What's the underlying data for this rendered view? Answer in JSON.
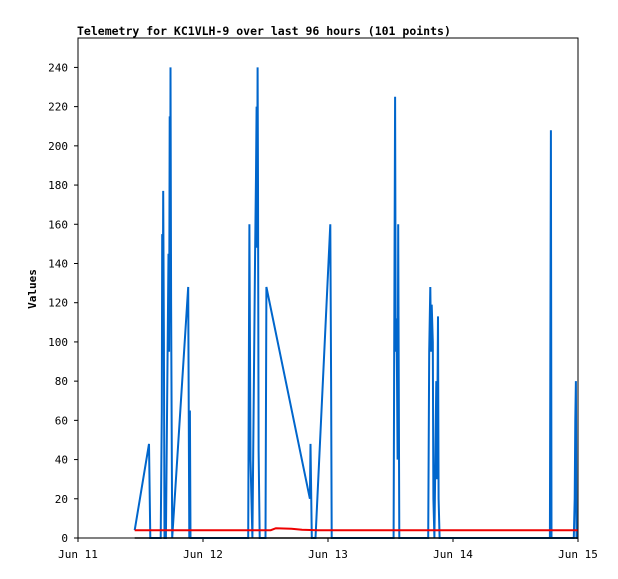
{
  "chart_data": {
    "type": "line",
    "title": "Telemetry for KC1VLH-9 over last 96 hours (101 points)",
    "xlabel": "",
    "ylabel": "Values",
    "x_axis": {
      "type": "time",
      "range": [
        "2011-06-11 00:00",
        "2011-06-15 00:00"
      ],
      "ticks": [
        "Jun 11",
        "Jun 12",
        "Jun 13",
        "Jun 14",
        "Jun 15"
      ]
    },
    "y_axis": {
      "range": [
        0,
        255
      ],
      "ticks": [
        0,
        20,
        40,
        60,
        80,
        100,
        120,
        140,
        160,
        180,
        200,
        220,
        240
      ]
    },
    "grid": false,
    "legend": "none",
    "series": [
      {
        "color": "#0066cc",
        "points": [
          [
            "2011-06-11 10:53",
            4
          ],
          [
            "2011-06-11 13:38",
            48
          ],
          [
            "2011-06-11 13:53",
            0
          ],
          [
            "2011-06-11 15:53",
            0
          ],
          [
            "2011-06-11 16:05",
            65
          ],
          [
            "2011-06-11 16:10",
            155
          ],
          [
            "2011-06-11 16:17",
            110
          ],
          [
            "2011-06-11 16:22",
            177
          ],
          [
            "2011-06-11 16:29",
            100
          ],
          [
            "2011-06-11 16:36",
            0
          ],
          [
            "2011-06-11 16:53",
            0
          ],
          [
            "2011-06-11 17:22",
            145
          ],
          [
            "2011-06-11 17:29",
            95
          ],
          [
            "2011-06-11 17:36",
            215
          ],
          [
            "2011-06-11 17:41",
            110
          ],
          [
            "2011-06-11 17:46",
            240
          ],
          [
            "2011-06-11 17:53",
            120
          ],
          [
            "2011-06-11 18:05",
            0
          ],
          [
            "2011-06-11 21:10",
            128
          ],
          [
            "2011-06-11 21:22",
            0
          ],
          [
            "2011-06-11 21:29",
            65
          ],
          [
            "2011-06-11 21:36",
            0
          ],
          [
            "2011-06-12 08:41",
            0
          ],
          [
            "2011-06-12 08:48",
            80
          ],
          [
            "2011-06-12 08:55",
            160
          ],
          [
            "2011-06-12 09:07",
            40
          ],
          [
            "2011-06-12 09:29",
            0
          ],
          [
            "2011-06-12 10:00",
            145
          ],
          [
            "2011-06-12 10:10",
            185
          ],
          [
            "2011-06-12 10:17",
            220
          ],
          [
            "2011-06-12 10:22",
            148
          ],
          [
            "2011-06-12 10:29",
            240
          ],
          [
            "2011-06-12 10:34",
            180
          ],
          [
            "2011-06-12 10:41",
            45
          ],
          [
            "2011-06-12 10:53",
            0
          ],
          [
            "2011-06-12 12:00",
            0
          ],
          [
            "2011-06-12 12:10",
            128
          ],
          [
            "2011-06-12 20:31",
            20
          ],
          [
            "2011-06-12 20:38",
            48
          ],
          [
            "2011-06-12 20:53",
            0
          ],
          [
            "2011-06-12 21:36",
            0
          ],
          [
            "2011-06-13 00:26",
            160
          ],
          [
            "2011-06-13 00:36",
            80
          ],
          [
            "2011-06-13 00:43",
            0
          ],
          [
            "2011-06-13 12:36",
            0
          ],
          [
            "2011-06-13 12:43",
            95
          ],
          [
            "2011-06-13 12:53",
            225
          ],
          [
            "2011-06-13 13:00",
            95
          ],
          [
            "2011-06-13 13:10",
            112
          ],
          [
            "2011-06-13 13:22",
            40
          ],
          [
            "2011-06-13 13:29",
            160
          ],
          [
            "2011-06-13 13:41",
            0
          ],
          [
            "2011-06-13 19:14",
            0
          ],
          [
            "2011-06-13 19:26",
            95
          ],
          [
            "2011-06-13 19:38",
            128
          ],
          [
            "2011-06-13 19:48",
            95
          ],
          [
            "2011-06-13 19:55",
            119
          ],
          [
            "2011-06-13 20:07",
            100
          ],
          [
            "2011-06-13 20:14",
            20
          ],
          [
            "2011-06-13 20:26",
            0
          ],
          [
            "2011-06-13 20:48",
            80
          ],
          [
            "2011-06-13 20:55",
            30
          ],
          [
            "2011-06-13 21:07",
            113
          ],
          [
            "2011-06-13 21:14",
            20
          ],
          [
            "2011-06-13 21:26",
            0
          ],
          [
            "2011-06-14 18:36",
            0
          ],
          [
            "2011-06-14 18:48",
            208
          ],
          [
            "2011-06-14 18:55",
            0
          ],
          [
            "2011-06-14 23:12",
            0
          ],
          [
            "2011-06-14 23:22",
            20
          ],
          [
            "2011-06-14 23:29",
            60
          ],
          [
            "2011-06-14 23:36",
            80
          ],
          [
            "2011-06-14 23:43",
            0
          ],
          [
            "2011-06-14 23:55",
            0
          ]
        ]
      },
      {
        "color": "#ee0000",
        "points": [
          [
            "2011-06-11 10:53",
            4
          ],
          [
            "2011-06-12 13:00",
            4
          ],
          [
            "2011-06-12 14:00",
            5
          ],
          [
            "2011-06-12 17:00",
            4.7
          ],
          [
            "2011-06-12 19:00",
            4.2
          ],
          [
            "2011-06-12 22:00",
            4
          ],
          [
            "2011-06-14 23:55",
            4
          ]
        ]
      },
      {
        "color": "#000000",
        "points": [
          [
            "2011-06-11 10:53",
            0
          ],
          [
            "2011-06-14 23:55",
            0
          ]
        ]
      }
    ]
  }
}
